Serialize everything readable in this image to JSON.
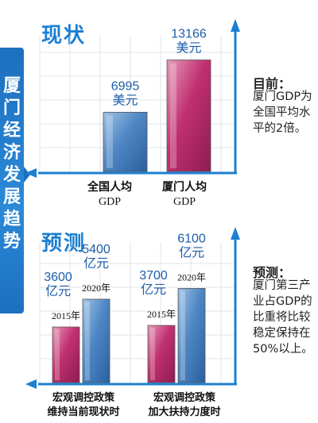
{
  "side_title": "厦门经济发展趋势",
  "chart_data": [
    {
      "type": "bar",
      "title": "现状",
      "categories": [
        "全国人均GDP",
        "厦门人均GDP"
      ],
      "values": [
        6995,
        13166
      ],
      "value_labels": [
        "6995",
        "13166"
      ],
      "unit": "美元",
      "ylim": [
        0,
        15000
      ],
      "grid": true,
      "colors": [
        "#3f79b8",
        "#c03070"
      ]
    },
    {
      "type": "bar",
      "title": "预测",
      "categories": [
        "宏观调控政策维持当前现状时",
        "宏观调控政策加大扶持力度时"
      ],
      "series": [
        {
          "name": "2015年",
          "values": [
            3600,
            3700
          ]
        },
        {
          "name": "2020年",
          "values": [
            5400,
            6100
          ]
        }
      ],
      "unit": "亿元",
      "ylim": [
        0,
        9000
      ],
      "grid": true,
      "colors": [
        "#c03070",
        "#3f79b8"
      ]
    }
  ],
  "top_chart": {
    "categories": [
      {
        "line1": "全国人均",
        "line2": "GDP"
      },
      {
        "line1": "厦门人均",
        "line2": "GDP"
      }
    ]
  },
  "bottom_chart": {
    "categories": [
      {
        "line1": "宏观调控政策",
        "line2": "维持当前现状时"
      },
      {
        "line1": "宏观调控政策",
        "line2": "加大扶持力度时"
      }
    ]
  },
  "notes": {
    "current_title": "目前：",
    "current_body": "厦门GDP为全国平均水平的2倍。",
    "forecast_title": "预测：",
    "forecast_body": "厦门第三产业占GDP的比重将比较稳定保持在50%以上。"
  }
}
